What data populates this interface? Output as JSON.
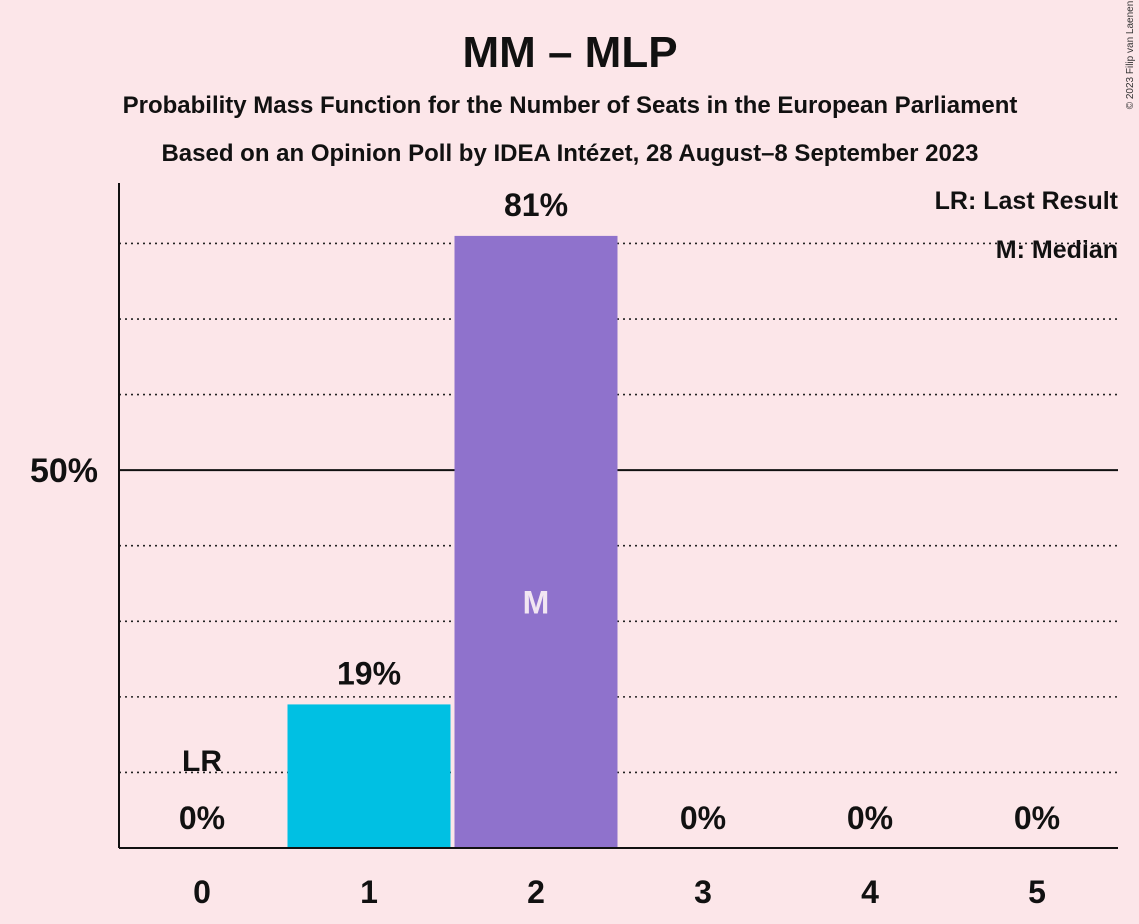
{
  "chart_data": {
    "type": "bar",
    "title": "MM – MLP",
    "subtitle_lines": [
      "Probability Mass Function for the Number of Seats in the European Parliament",
      "Based on an Opinion Poll by IDEA Intézet, 28 August–8 September 2023"
    ],
    "categories": [
      "0",
      "1",
      "2",
      "3",
      "4",
      "5"
    ],
    "values": [
      0,
      19,
      81,
      0,
      0,
      0
    ],
    "value_labels": [
      "0%",
      "19%",
      "81%",
      "0%",
      "0%",
      "0%"
    ],
    "bar_colors": [
      "#00c0e3",
      "#00c0e3",
      "#8f72cc",
      "#00c0e3",
      "#00c0e3",
      "#00c0e3"
    ],
    "ylim": [
      0,
      88
    ],
    "y_ticks": [
      {
        "value": 50,
        "label": "50%"
      }
    ],
    "dotted_gridlines": [
      10,
      20,
      30,
      40,
      60,
      70,
      80
    ],
    "last_result": {
      "category": "0",
      "label": "LR"
    },
    "median": {
      "category": "2",
      "label": "M"
    },
    "legend": {
      "placement": "top-right",
      "items": [
        "LR: Last Result",
        "M: Median"
      ]
    },
    "grid": true,
    "xlabel": "",
    "ylabel": ""
  },
  "copyright": "© 2023 Filip van Laenen",
  "colors": {
    "background": "#fce6e9",
    "median_bar": "#8f72cc",
    "other_bar": "#00c0e3"
  }
}
